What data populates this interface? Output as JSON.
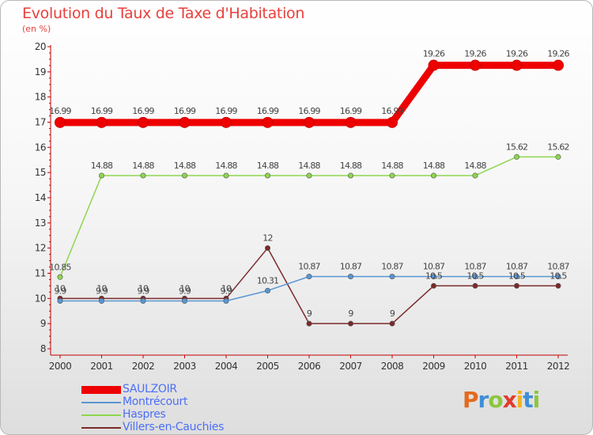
{
  "header": {
    "title": "Evolution du Taux de Taxe d'Habitation",
    "unit": "(en %)"
  },
  "colors": {
    "title": "#e8403c",
    "axis": "#c40000",
    "legend_text": "#4d6ff5"
  },
  "chart_data": {
    "type": "line",
    "title": "Evolution du Taux de Taxe d'Habitation",
    "subtitle": "(en %)",
    "xlabel": "",
    "ylabel": "",
    "categories": [
      "2000",
      "2001",
      "2002",
      "2003",
      "2004",
      "2005",
      "2006",
      "2007",
      "2008",
      "2009",
      "2010",
      "2011",
      "2012"
    ],
    "ylim": [
      8,
      20
    ],
    "yticks": [
      "8",
      "9",
      "10",
      "11",
      "12",
      "13",
      "14",
      "15",
      "16",
      "17",
      "18",
      "19",
      "20"
    ],
    "grid": false,
    "legend_position": "bottom-left",
    "series": [
      {
        "name": "SAULZOIR",
        "color": "#ee0000",
        "values": [
          16.99,
          16.99,
          16.99,
          16.99,
          16.99,
          16.99,
          16.99,
          16.99,
          16.99,
          19.26,
          19.26,
          19.26,
          19.26
        ],
        "labels": [
          "16.99",
          "16.99",
          "16.99",
          "16.99",
          "16.99",
          "16.99",
          "16.99",
          "16.99",
          "16.99",
          "19.26",
          "19.26",
          "19.26",
          "19.26"
        ]
      },
      {
        "name": "Montrécourt",
        "color": "#5a96d2",
        "values": [
          9.9,
          9.9,
          9.9,
          9.9,
          9.9,
          10.31,
          10.87,
          10.87,
          10.87,
          10.87,
          10.87,
          10.87,
          10.87
        ],
        "labels": [
          "9.9",
          "9.9",
          "9.9",
          "9.9",
          "9.9",
          "10.31",
          "10.87",
          "10.87",
          "10.87",
          "10.87",
          "10.87",
          "10.87",
          "10.87"
        ]
      },
      {
        "name": "Haspres",
        "color": "#8ed64f",
        "values": [
          10.85,
          14.88,
          14.88,
          14.88,
          14.88,
          14.88,
          14.88,
          14.88,
          14.88,
          14.88,
          14.88,
          15.62,
          15.62
        ],
        "labels": [
          "10.85",
          "14.88",
          "14.88",
          "14.88",
          "14.88",
          "14.88",
          "14.88",
          "14.88",
          "14.88",
          "14.88",
          "14.88",
          "15.62",
          "15.62"
        ]
      },
      {
        "name": "Villers-en-Cauchies",
        "color": "#7b2a2a",
        "values": [
          10,
          10,
          10,
          10,
          10,
          12,
          9,
          9,
          9,
          10.5,
          10.5,
          10.5,
          10.5
        ],
        "labels": [
          "10",
          "10",
          "10",
          "10",
          "10",
          "12",
          "9",
          "9",
          "9",
          "10.5",
          "10.5",
          "10.5",
          "10.5"
        ]
      }
    ]
  },
  "logo": {
    "letters": [
      "P",
      "r",
      "o",
      "x",
      "i",
      "t",
      "i"
    ],
    "colors": [
      "#e46a1e",
      "#3f8fd8",
      "#8cc63f",
      "#e23b2b",
      "#f2b41c",
      "#3f8fd8",
      "#8cc63f"
    ]
  }
}
